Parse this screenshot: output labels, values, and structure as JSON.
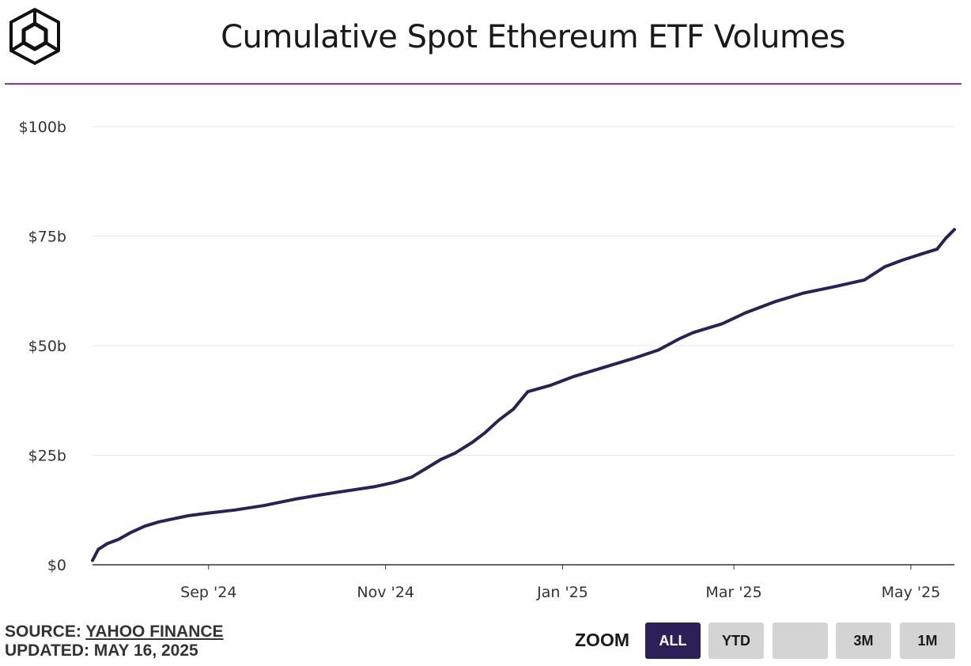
{
  "header": {
    "title": "Cumulative Spot Ethereum ETF Volumes"
  },
  "footer": {
    "source_label": "SOURCE: ",
    "source_name": "YAHOO FINANCE",
    "updated": "UPDATED: MAY 16, 2025"
  },
  "zoom": {
    "label": "ZOOM",
    "buttons": [
      {
        "label": "ALL",
        "active": true
      },
      {
        "label": "YTD",
        "active": false
      },
      {
        "label": "",
        "active": false
      },
      {
        "label": "3M",
        "active": false
      },
      {
        "label": "1M",
        "active": false
      }
    ]
  },
  "colors": {
    "line": "#2b2158",
    "accent": "#8a2be2",
    "grid": "#e6e6e6",
    "button_active": "#2b2158",
    "button": "#d4d4d4"
  },
  "chart_data": {
    "type": "line",
    "title": "Cumulative Spot Ethereum ETF Volumes",
    "xlabel": "",
    "ylabel": "",
    "xlim": [
      "2024-07-23",
      "2025-05-16"
    ],
    "ylim": [
      0,
      100
    ],
    "unit": "billion USD",
    "y_ticks": [
      {
        "value": 0,
        "label": "$0"
      },
      {
        "value": 25,
        "label": "$25b"
      },
      {
        "value": 50,
        "label": "$50b"
      },
      {
        "value": 75,
        "label": "$75b"
      },
      {
        "value": 100,
        "label": "$100b"
      }
    ],
    "x_ticks": [
      {
        "date": "2024-09-01",
        "label": "Sep '24"
      },
      {
        "date": "2024-11-01",
        "label": "Nov '24"
      },
      {
        "date": "2025-01-01",
        "label": "Jan '25"
      },
      {
        "date": "2025-03-01",
        "label": "Mar '25"
      },
      {
        "date": "2025-05-01",
        "label": "May '25"
      }
    ],
    "grid": true,
    "series": [
      {
        "values": [
          [
            "2024-07-23",
            1.0
          ],
          [
            "2024-07-25",
            3.5
          ],
          [
            "2024-07-28",
            4.8
          ],
          [
            "2024-08-01",
            5.8
          ],
          [
            "2024-08-05",
            7.3
          ],
          [
            "2024-08-10",
            8.8
          ],
          [
            "2024-08-15",
            9.8
          ],
          [
            "2024-08-20",
            10.5
          ],
          [
            "2024-08-25",
            11.2
          ],
          [
            "2024-09-01",
            11.8
          ],
          [
            "2024-09-10",
            12.5
          ],
          [
            "2024-09-20",
            13.5
          ],
          [
            "2024-10-01",
            15.0
          ],
          [
            "2024-10-10",
            16.0
          ],
          [
            "2024-10-20",
            17.0
          ],
          [
            "2024-10-28",
            17.8
          ],
          [
            "2024-11-04",
            18.8
          ],
          [
            "2024-11-10",
            20.0
          ],
          [
            "2024-11-15",
            22.0
          ],
          [
            "2024-11-20",
            24.0
          ],
          [
            "2024-11-25",
            25.5
          ],
          [
            "2024-12-01",
            28.0
          ],
          [
            "2024-12-05",
            30.0
          ],
          [
            "2024-12-10",
            33.0
          ],
          [
            "2024-12-15",
            35.5
          ],
          [
            "2024-12-20",
            39.5
          ],
          [
            "2024-12-28",
            41.0
          ],
          [
            "2025-01-05",
            43.0
          ],
          [
            "2025-01-15",
            45.0
          ],
          [
            "2025-01-25",
            47.0
          ],
          [
            "2025-02-03",
            49.0
          ],
          [
            "2025-02-10",
            51.5
          ],
          [
            "2025-02-15",
            53.0
          ],
          [
            "2025-02-25",
            55.0
          ],
          [
            "2025-03-05",
            57.5
          ],
          [
            "2025-03-15",
            60.0
          ],
          [
            "2025-03-25",
            62.0
          ],
          [
            "2025-04-05",
            63.5
          ],
          [
            "2025-04-15",
            65.0
          ],
          [
            "2025-04-22",
            68.0
          ],
          [
            "2025-04-28",
            69.5
          ],
          [
            "2025-05-05",
            71.0
          ],
          [
            "2025-05-10",
            72.0
          ],
          [
            "2025-05-13",
            74.5
          ],
          [
            "2025-05-16",
            76.5
          ]
        ]
      }
    ]
  }
}
